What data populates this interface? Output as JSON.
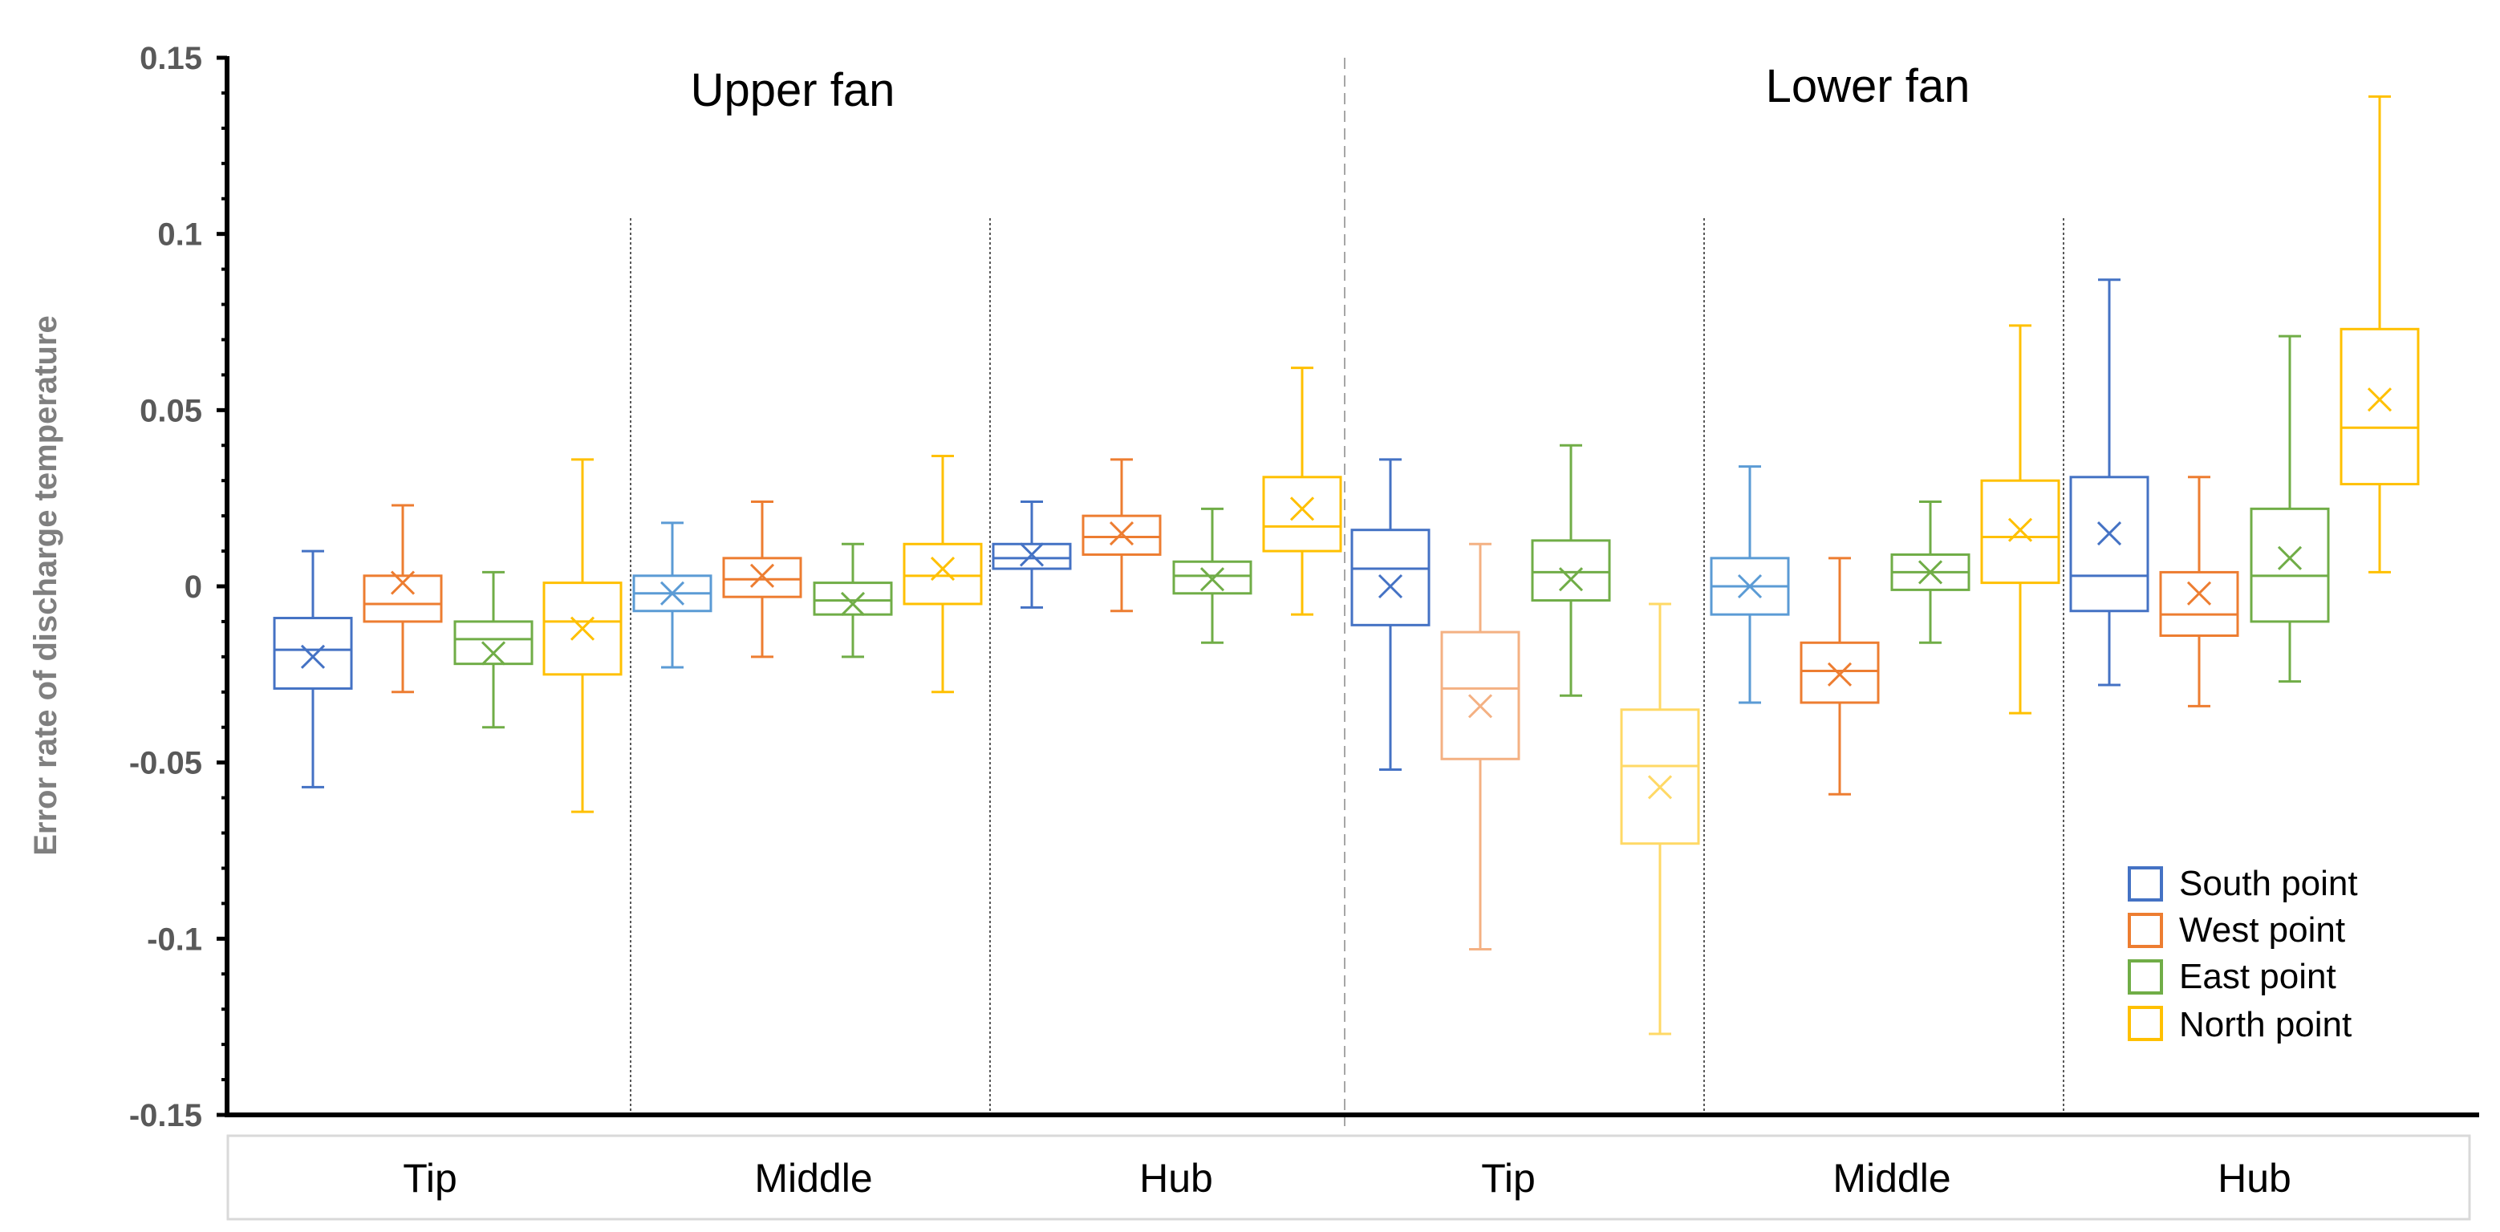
{
  "chart_data": {
    "type": "boxplot",
    "ylabel": "Error rate of discharge temperature",
    "ylim": [
      -0.15,
      0.15
    ],
    "ytick_labels": [
      "0.15",
      "0.1",
      "0.05",
      "0",
      "-0.05",
      "-0.1",
      "-0.15"
    ],
    "ytick_values": [
      0.15,
      0.1,
      0.05,
      0,
      -0.05,
      -0.1,
      -0.15
    ],
    "panels": [
      {
        "title": "Upper fan",
        "categories": [
          "Tip",
          "Middle",
          "Hub"
        ]
      },
      {
        "title": "Lower fan",
        "categories": [
          "Tip",
          "Middle",
          "Hub"
        ]
      }
    ],
    "series": [
      {
        "name": "South point",
        "color": "#4472C4"
      },
      {
        "name": "West point",
        "color": "#ED7D31"
      },
      {
        "name": "East point",
        "color": "#70AD47"
      },
      {
        "name": "North point",
        "color": "#FFC000"
      }
    ],
    "groups": [
      {
        "panel": "Upper fan",
        "category": "Tip",
        "boxes": [
          {
            "series": "South point",
            "min": -0.057,
            "q1": -0.029,
            "median": -0.018,
            "q3": -0.009,
            "max": 0.01,
            "mean": -0.02,
            "color": "#4472C4"
          },
          {
            "series": "West point",
            "min": -0.03,
            "q1": -0.01,
            "median": -0.005,
            "q3": 0.003,
            "max": 0.023,
            "mean": 0.001,
            "color": "#ED7D31"
          },
          {
            "series": "East point",
            "min": -0.04,
            "q1": -0.022,
            "median": -0.015,
            "q3": -0.01,
            "max": 0.004,
            "mean": -0.019,
            "color": "#70AD47"
          },
          {
            "series": "North point",
            "min": -0.064,
            "q1": -0.025,
            "median": -0.01,
            "q3": 0.001,
            "max": 0.036,
            "mean": -0.012,
            "color": "#FFC000"
          }
        ]
      },
      {
        "panel": "Upper fan",
        "category": "Middle",
        "boxes": [
          {
            "series": "South point",
            "min": -0.023,
            "q1": -0.007,
            "median": -0.002,
            "q3": 0.003,
            "max": 0.018,
            "mean": -0.002,
            "color": "#5B9BD5"
          },
          {
            "series": "West point",
            "min": -0.02,
            "q1": -0.003,
            "median": 0.002,
            "q3": 0.008,
            "max": 0.024,
            "mean": 0.003,
            "color": "#ED7D31"
          },
          {
            "series": "East point",
            "min": -0.02,
            "q1": -0.008,
            "median": -0.004,
            "q3": 0.001,
            "max": 0.012,
            "mean": -0.005,
            "color": "#70AD47"
          },
          {
            "series": "North point",
            "min": -0.03,
            "q1": -0.005,
            "median": 0.003,
            "q3": 0.012,
            "max": 0.037,
            "mean": 0.005,
            "color": "#FFC000"
          }
        ]
      },
      {
        "panel": "Upper fan",
        "category": "Hub",
        "boxes": [
          {
            "series": "South point",
            "min": -0.006,
            "q1": 0.005,
            "median": 0.008,
            "q3": 0.012,
            "max": 0.024,
            "mean": 0.009,
            "color": "#4472C4"
          },
          {
            "series": "West point",
            "min": -0.007,
            "q1": 0.009,
            "median": 0.014,
            "q3": 0.02,
            "max": 0.036,
            "mean": 0.015,
            "color": "#ED7D31"
          },
          {
            "series": "East point",
            "min": -0.016,
            "q1": -0.002,
            "median": 0.003,
            "q3": 0.007,
            "max": 0.022,
            "mean": 0.002,
            "color": "#70AD47"
          },
          {
            "series": "North point",
            "min": -0.008,
            "q1": 0.01,
            "median": 0.017,
            "q3": 0.031,
            "max": 0.062,
            "mean": 0.022,
            "color": "#FFC000"
          }
        ]
      },
      {
        "panel": "Lower fan",
        "category": "Tip",
        "boxes": [
          {
            "series": "South point",
            "min": -0.052,
            "q1": -0.011,
            "median": 0.005,
            "q3": 0.016,
            "max": 0.036,
            "mean": 0.0,
            "color": "#4472C4"
          },
          {
            "series": "West point",
            "min": -0.103,
            "q1": -0.049,
            "median": -0.029,
            "q3": -0.013,
            "max": 0.012,
            "mean": -0.034,
            "color": "#F4B183"
          },
          {
            "series": "East point",
            "min": -0.031,
            "q1": -0.004,
            "median": 0.004,
            "q3": 0.013,
            "max": 0.04,
            "mean": 0.002,
            "color": "#70AD47"
          },
          {
            "series": "North point",
            "min": -0.127,
            "q1": -0.073,
            "median": -0.051,
            "q3": -0.035,
            "max": -0.005,
            "mean": -0.057,
            "color": "#FFD966"
          }
        ]
      },
      {
        "panel": "Lower fan",
        "category": "Middle",
        "boxes": [
          {
            "series": "South point",
            "min": -0.033,
            "q1": -0.008,
            "median": 0.0,
            "q3": 0.008,
            "max": 0.034,
            "mean": 0.0,
            "color": "#5B9BD5"
          },
          {
            "series": "West point",
            "min": -0.059,
            "q1": -0.033,
            "median": -0.024,
            "q3": -0.016,
            "max": 0.008,
            "mean": -0.025,
            "color": "#ED7D31"
          },
          {
            "series": "East point",
            "min": -0.016,
            "q1": -0.001,
            "median": 0.004,
            "q3": 0.009,
            "max": 0.024,
            "mean": 0.004,
            "color": "#70AD47"
          },
          {
            "series": "North point",
            "min": -0.036,
            "q1": 0.001,
            "median": 0.014,
            "q3": 0.03,
            "max": 0.074,
            "mean": 0.016,
            "color": "#FFC000"
          }
        ]
      },
      {
        "panel": "Lower fan",
        "category": "Hub",
        "boxes": [
          {
            "series": "South point",
            "min": -0.028,
            "q1": -0.007,
            "median": 0.003,
            "q3": 0.031,
            "max": 0.087,
            "mean": 0.015,
            "color": "#4472C4"
          },
          {
            "series": "West point",
            "min": -0.034,
            "q1": -0.014,
            "median": -0.008,
            "q3": 0.004,
            "max": 0.031,
            "mean": -0.002,
            "color": "#ED7D31"
          },
          {
            "series": "East point",
            "min": -0.027,
            "q1": -0.01,
            "median": 0.003,
            "q3": 0.022,
            "max": 0.071,
            "mean": 0.008,
            "color": "#70AD47"
          },
          {
            "series": "North point",
            "min": 0.004,
            "q1": 0.029,
            "median": 0.045,
            "q3": 0.073,
            "max": 0.139,
            "mean": 0.053,
            "color": "#FFC000"
          }
        ]
      }
    ],
    "legend": {
      "position": "bottom-right",
      "entries": [
        "South point",
        "West point",
        "East point",
        "North point"
      ]
    }
  }
}
